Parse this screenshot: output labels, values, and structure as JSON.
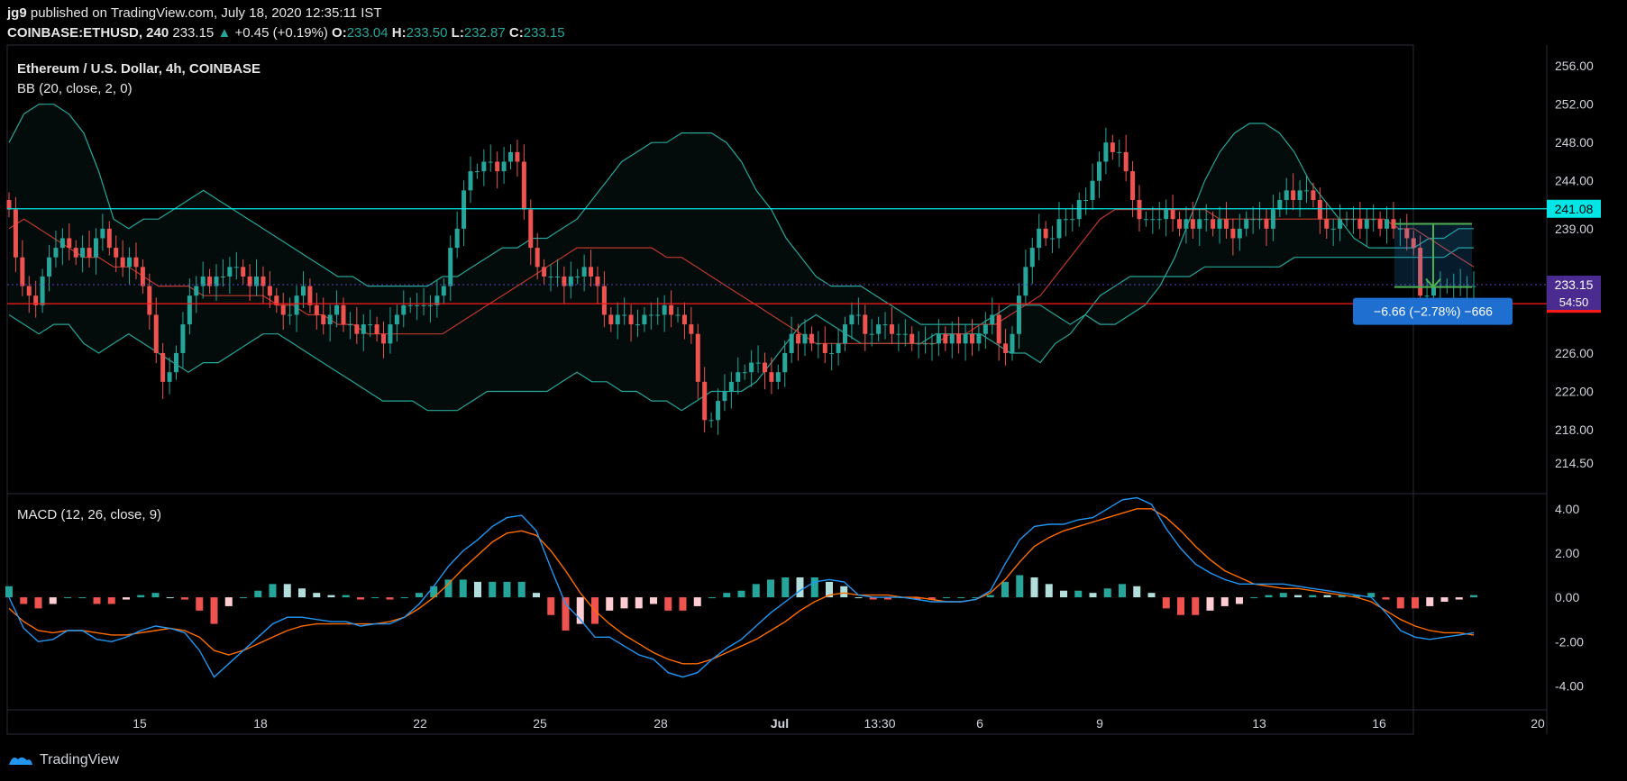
{
  "header": {
    "author": "jg9",
    "published_text": "published on TradingView.com, July 18, 2020 12:35:11 IST",
    "symbol": "COINBASE:ETHUSD, 240",
    "last": "233.15",
    "change": "+0.45 (+0.19%)",
    "open_label": "O:",
    "open": "233.04",
    "high_label": "H:",
    "high": "233.50",
    "low_label": "L:",
    "low": "232.87",
    "close_label": "C:",
    "close": "233.15"
  },
  "footer": {
    "brand": "TradingView"
  },
  "colors": {
    "bg": "#000000",
    "bull": "#26a69a",
    "bear": "#ef5350",
    "bb_band": "#26a69a",
    "bb_basis": "#c0392b",
    "resistance": "#00e5e5",
    "support": "#ff1a1a",
    "macd_line": "#2196f3",
    "signal_line": "#ff6d00"
  },
  "chart_data": [
    {
      "type": "candlestick",
      "title": "Ethereum / U.S. Dollar, 4h, COINBASE",
      "indicator": "BB (20, close, 2, 0)",
      "x_tick_labels": [
        "15",
        "18",
        "22",
        "25",
        "28",
        "Jul",
        "13:30",
        "6",
        "9",
        "13",
        "16",
        "20"
      ],
      "y_tick_labels": [
        "256.00",
        "252.00",
        "248.00",
        "244.00",
        "239.00",
        "226.00",
        "222.00",
        "218.00",
        "214.50"
      ],
      "ylim": [
        211.5,
        258
      ],
      "horizontal_lines": [
        {
          "label": "241.08",
          "value": 241.08,
          "color": "#00e5e5"
        },
        {
          "label": "231.16",
          "value": 231.16,
          "color": "#ff1a1a"
        }
      ],
      "price_labels": {
        "last": "233.15",
        "countdown": "54:50"
      },
      "measure_tool": {
        "text": "−6.66 (−2.78%) −666",
        "from": 239.5,
        "to": 232.9
      },
      "close_series": [
        241,
        236,
        233,
        232,
        231,
        234,
        236,
        237,
        238,
        237,
        236,
        237,
        236,
        238,
        239,
        237,
        236,
        235,
        236,
        235,
        233,
        230,
        226,
        223,
        224,
        226,
        229,
        232,
        233,
        234,
        233,
        234,
        234,
        235,
        235,
        234,
        233,
        234,
        233,
        232,
        231,
        230,
        230,
        232,
        233,
        231,
        230,
        229,
        230,
        231,
        229,
        229,
        228,
        229,
        229,
        228,
        227,
        229,
        230,
        231,
        231,
        231,
        231,
        231,
        232,
        233,
        237,
        239,
        243,
        245,
        245,
        246,
        246,
        245,
        246,
        247,
        246,
        241,
        237,
        235,
        234,
        234,
        234,
        233,
        234,
        234,
        235,
        234,
        233,
        230,
        229,
        230,
        230,
        229,
        229,
        230,
        230,
        230,
        231,
        230,
        230,
        229,
        228,
        223,
        219,
        219,
        221,
        222,
        223,
        224,
        224,
        225,
        225,
        224,
        223,
        224,
        226,
        228,
        227,
        228,
        227,
        227,
        226,
        226,
        227,
        229,
        230,
        230,
        228,
        228,
        229,
        229,
        228,
        228,
        228,
        227,
        227,
        227,
        227,
        228,
        227,
        228,
        227,
        228,
        227,
        228,
        229,
        230,
        227,
        226,
        228,
        232,
        235,
        237,
        239,
        238,
        238,
        240,
        240,
        240,
        242,
        242,
        244,
        246,
        248,
        247,
        247,
        245,
        242,
        240,
        240,
        240,
        240,
        241,
        240,
        239,
        240,
        239,
        240,
        240,
        239,
        240,
        239,
        238,
        239,
        240,
        240,
        240,
        239,
        241,
        242,
        243,
        242,
        243,
        243,
        242,
        240,
        239,
        239,
        240,
        240,
        240,
        239,
        240,
        240,
        239,
        240,
        239,
        239,
        238,
        237,
        232,
        232,
        233,
        233,
        233,
        233,
        233,
        233,
        233
      ],
      "bb_upper": [
        248,
        251,
        252,
        252,
        251,
        249,
        245,
        240,
        239,
        240,
        240,
        241,
        242,
        243,
        242,
        241,
        240,
        239,
        238,
        237,
        236,
        235,
        234,
        234,
        233,
        233,
        233,
        233,
        233,
        234,
        234,
        235,
        236,
        237,
        237,
        238,
        238,
        239,
        240,
        242,
        244,
        246,
        247,
        248,
        248,
        249,
        249,
        249,
        248,
        246,
        243,
        241,
        238,
        236,
        234,
        233,
        233,
        233,
        232,
        231,
        230,
        229,
        229,
        229,
        229,
        229,
        230,
        231,
        231,
        231,
        230,
        229,
        230,
        229,
        229,
        230,
        231,
        233,
        236,
        240,
        244,
        247,
        249,
        250,
        250,
        249,
        247,
        244,
        242,
        240,
        238,
        237,
        237,
        237,
        237,
        238,
        238,
        239,
        239
      ],
      "bb_lower": [
        230,
        229,
        228,
        229,
        229,
        227,
        226,
        227,
        228,
        227,
        226,
        225,
        224,
        225,
        225,
        226,
        227,
        228,
        228,
        227,
        226,
        225,
        224,
        223,
        222,
        221,
        221,
        221,
        220,
        220,
        220,
        221,
        222,
        222,
        222,
        222,
        222,
        223,
        224,
        223,
        223,
        222,
        222,
        221,
        221,
        220,
        221,
        222,
        222,
        222,
        223,
        225,
        227,
        229,
        230,
        229,
        228,
        227,
        227,
        227,
        227,
        227,
        228,
        228,
        228,
        228,
        227,
        226,
        226,
        225,
        227,
        228,
        230,
        232,
        233,
        234,
        234,
        234,
        234,
        234,
        235,
        235,
        235,
        235,
        235,
        235,
        236,
        236,
        236,
        236,
        236,
        236,
        236,
        236,
        236,
        236,
        236,
        237,
        237
      ],
      "bb_basis_from": [
        239,
        240,
        239,
        238,
        237,
        236,
        236,
        235,
        235,
        234,
        233,
        233,
        233,
        232,
        232,
        232,
        232,
        232,
        231,
        231,
        230,
        230,
        229,
        229,
        228,
        228,
        228,
        228,
        228,
        228,
        229,
        230,
        231,
        232,
        233,
        234,
        235,
        236,
        237,
        237,
        237,
        237,
        237,
        237,
        236,
        236,
        235,
        234,
        233,
        232,
        231,
        230,
        229,
        228,
        227,
        227,
        227,
        227,
        227,
        227,
        227,
        227,
        227,
        228,
        228,
        229,
        229,
        230,
        231,
        232,
        234,
        236,
        238,
        240,
        241,
        241,
        241,
        241,
        241,
        241,
        241,
        240,
        240,
        240,
        240,
        240,
        240,
        240,
        240,
        240,
        240,
        240,
        240,
        239,
        239,
        238,
        237,
        236,
        235
      ]
    },
    {
      "type": "histogram+line",
      "title": "MACD (12, 26, close, 9)",
      "y_tick_labels": [
        "4.00",
        "2.00",
        "0.00",
        "-2.00",
        "-4.00"
      ],
      "ylim": [
        -5,
        4.6
      ],
      "macd": [
        0,
        -1.4,
        -2,
        -1.9,
        -1.5,
        -1.5,
        -1.9,
        -2,
        -1.8,
        -1.5,
        -1.3,
        -1.4,
        -1.6,
        -2.4,
        -3.6,
        -3,
        -2.4,
        -1.8,
        -1.2,
        -0.9,
        -0.9,
        -1,
        -1.1,
        -1.1,
        -1.3,
        -1.2,
        -1.2,
        -0.9,
        -0.3,
        0.5,
        1.4,
        2.1,
        2.6,
        3.2,
        3.6,
        3.7,
        3,
        1.3,
        -0.3,
        -1,
        -1.8,
        -1.8,
        -2.2,
        -2.6,
        -2.8,
        -3.4,
        -3.6,
        -3.4,
        -2.8,
        -2.3,
        -1.9,
        -1.3,
        -0.7,
        -0.2,
        0.3,
        0.7,
        0.8,
        0.7,
        0.1,
        0,
        0,
        0,
        -0.1,
        -0.2,
        -0.2,
        -0.2,
        -0.1,
        0.3,
        1.5,
        2.6,
        3.2,
        3.3,
        3.3,
        3.5,
        3.6,
        4,
        4.4,
        4.5,
        4.2,
        3.1,
        2.2,
        1.5,
        1.1,
        0.8,
        0.6,
        0.6,
        0.6,
        0.6,
        0.5,
        0.4,
        0.3,
        0.2,
        0.1,
        0,
        -0.7,
        -1.5,
        -1.8,
        -1.9,
        -1.8,
        -1.7,
        -1.6
      ],
      "signal": [
        -0.5,
        -1.1,
        -1.5,
        -1.6,
        -1.5,
        -1.5,
        -1.6,
        -1.7,
        -1.7,
        -1.6,
        -1.5,
        -1.4,
        -1.5,
        -1.8,
        -2.4,
        -2.6,
        -2.4,
        -2.1,
        -1.8,
        -1.5,
        -1.3,
        -1.2,
        -1.2,
        -1.2,
        -1.2,
        -1.2,
        -1.1,
        -0.9,
        -0.5,
        0,
        0.6,
        1.3,
        1.9,
        2.5,
        2.9,
        3,
        2.8,
        2.1,
        1.2,
        0.2,
        -0.6,
        -1.2,
        -1.7,
        -2.1,
        -2.5,
        -2.8,
        -3,
        -3,
        -2.8,
        -2.5,
        -2.2,
        -1.9,
        -1.5,
        -1.1,
        -0.6,
        -0.2,
        0.1,
        0.2,
        0.1,
        0.1,
        0.1,
        0,
        0,
        -0.1,
        -0.2,
        -0.2,
        -0.1,
        0.2,
        0.8,
        1.6,
        2.3,
        2.7,
        3,
        3.2,
        3.4,
        3.6,
        3.8,
        4,
        4,
        3.6,
        3,
        2.3,
        1.7,
        1.2,
        0.9,
        0.6,
        0.5,
        0.4,
        0.4,
        0.3,
        0.2,
        0.1,
        0,
        -0.2,
        -0.6,
        -1,
        -1.3,
        -1.5,
        -1.6,
        -1.6,
        -1.7
      ]
    }
  ]
}
